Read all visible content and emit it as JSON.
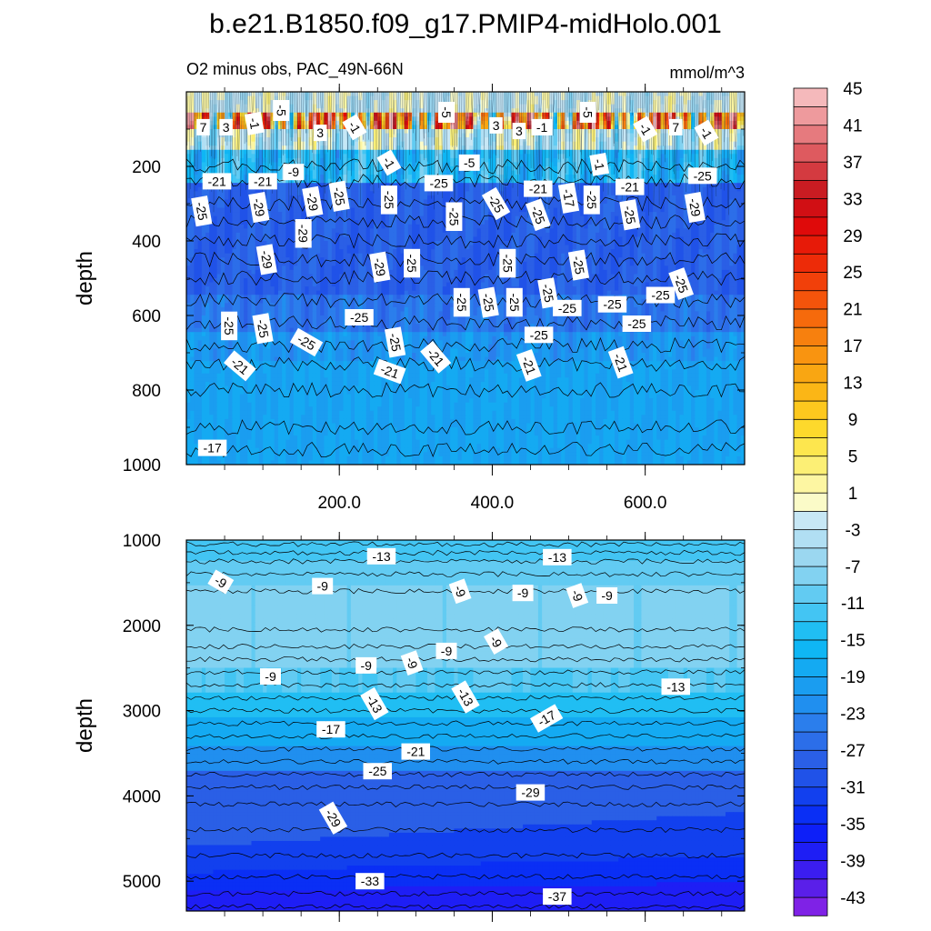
{
  "figure_title": "b.e21.B1850.f09_g17.PMIP4-midHolo.001",
  "chart_data": {
    "type": "heatmap",
    "subtitle_left": "O2 minus obs, PAC_49N-66N",
    "subtitle_right": "mmol/m^3",
    "colorbar": {
      "levels": [
        -45,
        -43,
        -41,
        -39,
        -37,
        -35,
        -33,
        -31,
        -29,
        -27,
        -25,
        -23,
        -21,
        -19,
        -17,
        -15,
        -13,
        -11,
        -9,
        -7,
        -5,
        -3,
        -1,
        1,
        3,
        5,
        7,
        9,
        11,
        13,
        15,
        17,
        19,
        21,
        23,
        25,
        27,
        29,
        31,
        33,
        35,
        37,
        39,
        41,
        43,
        45
      ],
      "tick_labels": [
        "-43",
        "-39",
        "-35",
        "-31",
        "-27",
        "-23",
        "-19",
        "-15",
        "-11",
        "-7",
        "-3",
        "1",
        "5",
        "9",
        "13",
        "17",
        "21",
        "25",
        "29",
        "33",
        "37",
        "41",
        "45"
      ],
      "colors": [
        "#7f22e6",
        "#5a1fe9",
        "#3b1df0",
        "#1e1ef5",
        "#0d1ff8",
        "#0a2ff5",
        "#1240ee",
        "#2052e8",
        "#2a5fe6",
        "#2c6ee9",
        "#2b7eec",
        "#208fef",
        "#1a9df0",
        "#14aaf2",
        "#0fb6f4",
        "#20bef3",
        "#43c5f3",
        "#62cbf2",
        "#82d2f1",
        "#9bd7f0",
        "#b1dff3",
        "#c7e7f5",
        "#fbfbc8",
        "#fdf6a2",
        "#fcef75",
        "#fde64e",
        "#fdd92c",
        "#fdc81e",
        "#fbb616",
        "#f9a612",
        "#f99410",
        "#f7800e",
        "#f66a0c",
        "#f4540b",
        "#f1400a",
        "#ed2b08",
        "#e71a08",
        "#df0a0a",
        "#d10f14",
        "#c91c22",
        "#d43a40",
        "#de5a5f",
        "#e67a7e",
        "#ee9a9d",
        "#f5b9bb"
      ]
    },
    "panels": [
      {
        "id": "upper",
        "ylabel": "depth",
        "ylim": [
          0,
          1000
        ],
        "yticks": [
          200,
          400,
          600,
          800,
          1000
        ],
        "ytick_labels": [
          "200",
          "400",
          "600",
          "800",
          "1000"
        ],
        "xlim": [
          0,
          730
        ],
        "xticks": [
          200,
          400,
          600
        ],
        "xtick_labels": [
          "200.0",
          "400.0",
          "600.0"
        ],
        "contour_labels": [
          {
            "text": "7",
            "x": 22,
            "y": 95,
            "rot": 0
          },
          {
            "text": "3",
            "x": 52,
            "y": 95,
            "rot": 0
          },
          {
            "text": "-1",
            "x": 89,
            "y": 85,
            "rot": 80
          },
          {
            "text": "-5",
            "x": 124,
            "y": 50,
            "rot": 90
          },
          {
            "text": "3",
            "x": 175,
            "y": 110,
            "rot": 0
          },
          {
            "text": "-1",
            "x": 220,
            "y": 95,
            "rot": 60
          },
          {
            "text": "-5",
            "x": 340,
            "y": 55,
            "rot": 90
          },
          {
            "text": "3",
            "x": 405,
            "y": 90,
            "rot": 0
          },
          {
            "text": "3",
            "x": 435,
            "y": 105,
            "rot": 0
          },
          {
            "text": "-1",
            "x": 465,
            "y": 95,
            "rot": 0
          },
          {
            "text": "-5",
            "x": 525,
            "y": 55,
            "rot": 90
          },
          {
            "text": "-1",
            "x": 600,
            "y": 100,
            "rot": 60
          },
          {
            "text": "7",
            "x": 640,
            "y": 95,
            "rot": 0
          },
          {
            "text": "-1",
            "x": 680,
            "y": 110,
            "rot": 60
          },
          {
            "text": "-1",
            "x": 265,
            "y": 190,
            "rot": 60
          },
          {
            "text": "-5",
            "x": 370,
            "y": 190,
            "rot": 0
          },
          {
            "text": "-1",
            "x": 540,
            "y": 195,
            "rot": 80
          },
          {
            "text": "-9",
            "x": 140,
            "y": 215,
            "rot": 0
          },
          {
            "text": "-21",
            "x": 40,
            "y": 240,
            "rot": 0
          },
          {
            "text": "-21",
            "x": 100,
            "y": 240,
            "rot": 0
          },
          {
            "text": "-25",
            "x": 330,
            "y": 245,
            "rot": 0
          },
          {
            "text": "-21",
            "x": 460,
            "y": 260,
            "rot": 0
          },
          {
            "text": "-21",
            "x": 580,
            "y": 255,
            "rot": 0
          },
          {
            "text": "-25",
            "x": 675,
            "y": 225,
            "rot": 0
          },
          {
            "text": "-25",
            "x": 20,
            "y": 320,
            "rot": 80
          },
          {
            "text": "-29",
            "x": 95,
            "y": 310,
            "rot": 80
          },
          {
            "text": "-29",
            "x": 165,
            "y": 295,
            "rot": 80
          },
          {
            "text": "-25",
            "x": 200,
            "y": 280,
            "rot": 80
          },
          {
            "text": "-25",
            "x": 265,
            "y": 290,
            "rot": 90
          },
          {
            "text": "-25",
            "x": 350,
            "y": 335,
            "rot": 90
          },
          {
            "text": "-25",
            "x": 405,
            "y": 300,
            "rot": 60
          },
          {
            "text": "-17",
            "x": 500,
            "y": 285,
            "rot": 80
          },
          {
            "text": "-25",
            "x": 530,
            "y": 290,
            "rot": 90
          },
          {
            "text": "-25",
            "x": 460,
            "y": 330,
            "rot": 70
          },
          {
            "text": "-25",
            "x": 580,
            "y": 330,
            "rot": 80
          },
          {
            "text": "-29",
            "x": 665,
            "y": 310,
            "rot": 80
          },
          {
            "text": "-29",
            "x": 153,
            "y": 380,
            "rot": 90
          },
          {
            "text": "-25",
            "x": 295,
            "y": 460,
            "rot": 90
          },
          {
            "text": "-29",
            "x": 105,
            "y": 450,
            "rot": 80
          },
          {
            "text": "-29",
            "x": 253,
            "y": 470,
            "rot": 80
          },
          {
            "text": "-25",
            "x": 420,
            "y": 460,
            "rot": 90
          },
          {
            "text": "-25",
            "x": 513,
            "y": 465,
            "rot": 80
          },
          {
            "text": "-25",
            "x": 647,
            "y": 515,
            "rot": 70
          },
          {
            "text": "-25",
            "x": 360,
            "y": 565,
            "rot": 90
          },
          {
            "text": "-25",
            "x": 395,
            "y": 565,
            "rot": 80
          },
          {
            "text": "-25",
            "x": 429,
            "y": 565,
            "rot": 90
          },
          {
            "text": "-25",
            "x": 473,
            "y": 540,
            "rot": 80
          },
          {
            "text": "-25",
            "x": 557,
            "y": 570,
            "rot": 0
          },
          {
            "text": "-25",
            "x": 498,
            "y": 580,
            "rot": 0
          },
          {
            "text": "-25",
            "x": 620,
            "y": 545,
            "rot": 0
          },
          {
            "text": "-25",
            "x": 56,
            "y": 628,
            "rot": 90
          },
          {
            "text": "-25",
            "x": 100,
            "y": 635,
            "rot": 80
          },
          {
            "text": "-25",
            "x": 226,
            "y": 605,
            "rot": 0
          },
          {
            "text": "-25",
            "x": 461,
            "y": 652,
            "rot": 0
          },
          {
            "text": "-25",
            "x": 589,
            "y": 622,
            "rot": 0
          },
          {
            "text": "-25",
            "x": 157,
            "y": 672,
            "rot": 30
          },
          {
            "text": "-25",
            "x": 273,
            "y": 672,
            "rot": 80
          },
          {
            "text": "-21",
            "x": 70,
            "y": 735,
            "rot": 40
          },
          {
            "text": "-21",
            "x": 266,
            "y": 750,
            "rot": 20
          },
          {
            "text": "-21",
            "x": 326,
            "y": 712,
            "rot": 50
          },
          {
            "text": "-21",
            "x": 448,
            "y": 734,
            "rot": 70
          },
          {
            "text": "-21",
            "x": 568,
            "y": 726,
            "rot": 70
          },
          {
            "text": "-17",
            "x": 34,
            "y": 955,
            "rot": 0
          }
        ]
      },
      {
        "id": "lower",
        "ylabel": "depth",
        "ylim": [
          1000,
          5350
        ],
        "yticks": [
          1000,
          2000,
          3000,
          4000,
          5000
        ],
        "ytick_labels": [
          "1000",
          "2000",
          "3000",
          "4000",
          "5000"
        ],
        "xlim": [
          0,
          730
        ],
        "xticks": [
          200,
          400,
          600
        ],
        "xtick_labels": [],
        "contour_labels": [
          {
            "text": "-13",
            "x": 255,
            "y": 1190,
            "rot": 0
          },
          {
            "text": "-13",
            "x": 485,
            "y": 1200,
            "rot": 0
          },
          {
            "text": "-9",
            "x": 45,
            "y": 1490,
            "rot": 30
          },
          {
            "text": "-9",
            "x": 178,
            "y": 1540,
            "rot": 0
          },
          {
            "text": "-9",
            "x": 358,
            "y": 1600,
            "rot": 70
          },
          {
            "text": "-9",
            "x": 440,
            "y": 1620,
            "rot": 0
          },
          {
            "text": "-9",
            "x": 511,
            "y": 1650,
            "rot": 70
          },
          {
            "text": "-9",
            "x": 550,
            "y": 1650,
            "rot": 0
          },
          {
            "text": "-9",
            "x": 405,
            "y": 2190,
            "rot": 60
          },
          {
            "text": "-9",
            "x": 340,
            "y": 2300,
            "rot": 0
          },
          {
            "text": "-9",
            "x": 295,
            "y": 2440,
            "rot": 70
          },
          {
            "text": "-9",
            "x": 235,
            "y": 2470,
            "rot": 0
          },
          {
            "text": "-9",
            "x": 110,
            "y": 2600,
            "rot": 0
          },
          {
            "text": "-13",
            "x": 640,
            "y": 2720,
            "rot": 0
          },
          {
            "text": "-13",
            "x": 246,
            "y": 2920,
            "rot": 60
          },
          {
            "text": "-13",
            "x": 365,
            "y": 2840,
            "rot": 60
          },
          {
            "text": "-17",
            "x": 471,
            "y": 3090,
            "rot": 330
          },
          {
            "text": "-17",
            "x": 189,
            "y": 3220,
            "rot": 0
          },
          {
            "text": "-21",
            "x": 300,
            "y": 3480,
            "rot": 0
          },
          {
            "text": "-25",
            "x": 250,
            "y": 3710,
            "rot": 0
          },
          {
            "text": "-29",
            "x": 450,
            "y": 3960,
            "rot": 0
          },
          {
            "text": "-29",
            "x": 192,
            "y": 4260,
            "rot": 60
          },
          {
            "text": "-33",
            "x": 240,
            "y": 5000,
            "rot": 0
          },
          {
            "text": "-37",
            "x": 485,
            "y": 5180,
            "rot": 0
          }
        ]
      }
    ]
  }
}
